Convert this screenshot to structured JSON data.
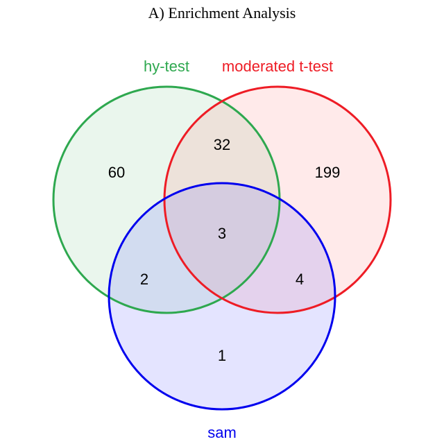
{
  "title": "A) Enrichment Analysis",
  "sets": [
    {
      "name": "hy-test",
      "stroke": "#2ea84f",
      "fill": "#2ea84f"
    },
    {
      "name": "moderated t-test",
      "stroke": "#ee1c25",
      "fill": "#ff6b6b"
    },
    {
      "name": "sam",
      "stroke": "#0000ee",
      "fill": "#6b6bff"
    }
  ],
  "regions": {
    "hy_only": "60",
    "hy_mod": "32",
    "mod_only": "199",
    "all_three": "3",
    "hy_sam": "2",
    "mod_sam": "4",
    "sam_only": "1"
  }
}
